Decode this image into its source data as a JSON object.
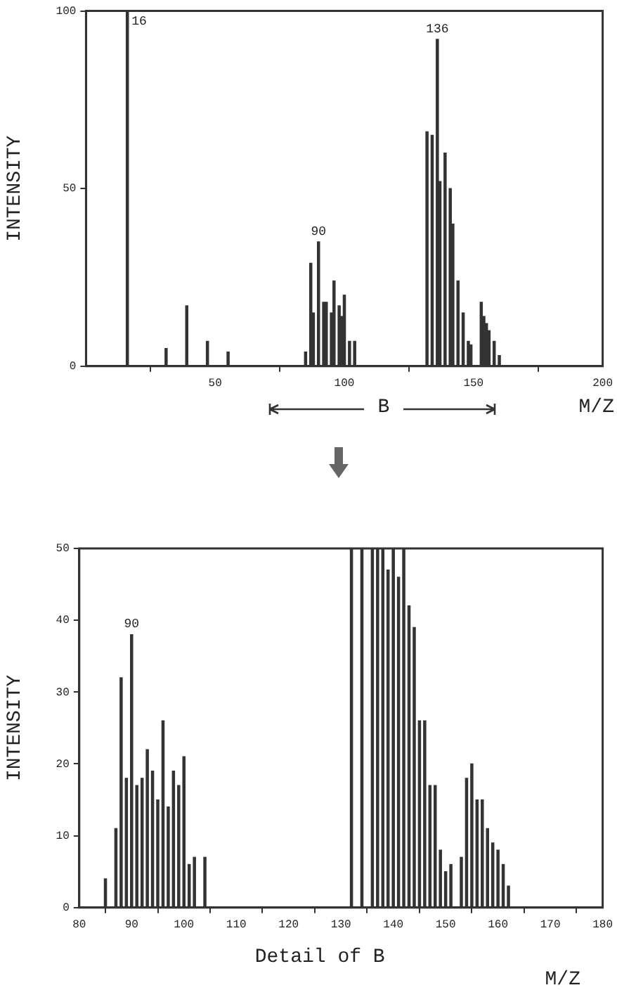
{
  "chart_data": [
    {
      "type": "bar",
      "x": [
        16,
        31,
        39,
        47,
        55,
        85,
        87,
        88,
        90,
        92,
        93,
        95,
        96,
        98,
        99,
        100,
        102,
        104,
        132,
        134,
        136,
        137,
        139,
        141,
        142,
        144,
        146,
        148,
        149,
        153,
        154,
        155,
        156,
        158,
        160
      ],
      "values": [
        100,
        5,
        17,
        7,
        4,
        4,
        29,
        15,
        35,
        18,
        18,
        15,
        24,
        17,
        14,
        20,
        7,
        7,
        66,
        65,
        92,
        52,
        60,
        50,
        40,
        24,
        15,
        7,
        6,
        18,
        14,
        12,
        10,
        7,
        3
      ],
      "color": "#333333",
      "xlim": [
        0,
        200
      ],
      "xticks": [
        50,
        100,
        150,
        200
      ],
      "ylim": [
        0,
        100
      ],
      "yticks": [
        0,
        50,
        100
      ],
      "xlabel": "M/Z",
      "ylabel": "INTENSITY",
      "annotations": [
        {
          "text": "16",
          "x": 16,
          "y": 100
        },
        {
          "text": "90",
          "x": 90,
          "y": 35
        },
        {
          "text": "136",
          "x": 136,
          "y": 92
        },
        "B"
      ]
    },
    {
      "type": "bar",
      "x": [
        85,
        87,
        88,
        89,
        90,
        91,
        92,
        93,
        94,
        95,
        96,
        97,
        98,
        99,
        100,
        101,
        102,
        104,
        132,
        134,
        136,
        137,
        138,
        139,
        140,
        141,
        142,
        143,
        144,
        145,
        146,
        147,
        148,
        149,
        150,
        151,
        153,
        154,
        155,
        156,
        157,
        158,
        159,
        160,
        161,
        162
      ],
      "values": [
        4,
        11,
        32,
        18,
        38,
        17,
        18,
        22,
        19,
        15,
        26,
        14,
        19,
        17,
        21,
        6,
        7,
        7,
        50,
        50,
        50,
        50,
        50,
        47,
        50,
        46,
        50,
        42,
        39,
        26,
        26,
        17,
        17,
        8,
        5,
        6,
        7,
        18,
        20,
        15,
        15,
        11,
        9,
        8,
        6,
        3
      ],
      "color": "#333333",
      "xlim": [
        80,
        180
      ],
      "xticks": [
        80,
        90,
        100,
        110,
        120,
        130,
        140,
        150,
        160,
        170,
        180
      ],
      "ylim": [
        0,
        50
      ],
      "yticks": [
        0,
        10,
        20,
        30,
        40,
        50
      ],
      "xlabel": "M/Z",
      "ylabel": "INTENSITY",
      "annotations": [
        {
          "text": "90",
          "x": 90,
          "y": 38
        },
        "Detail of B"
      ]
    }
  ]
}
